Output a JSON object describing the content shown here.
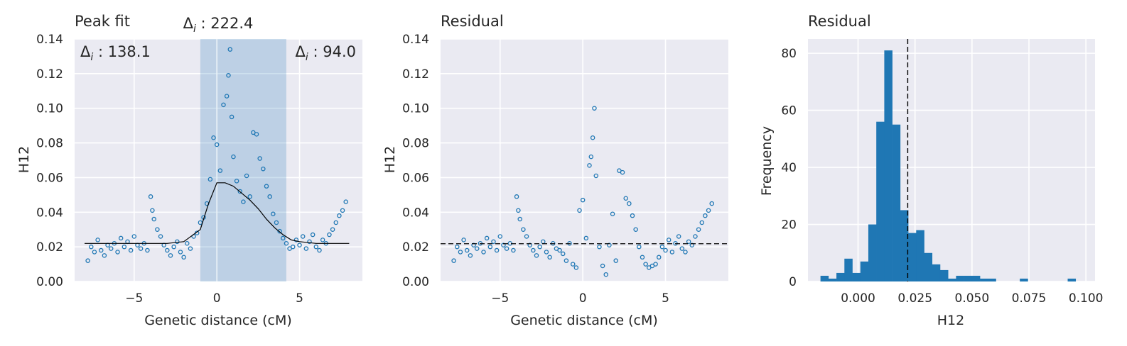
{
  "chart_data": [
    {
      "type": "scatter",
      "title": "Peak fit",
      "xlabel": "Genetic distance (cM)",
      "ylabel": "H12",
      "xlim": [
        -8.6,
        8.8
      ],
      "ylim": [
        0,
        0.14
      ],
      "xticks": [
        -5,
        0,
        5
      ],
      "xtick_labels": [
        "−5",
        "0",
        "5"
      ],
      "yticks": [
        0,
        0.02,
        0.04,
        0.06,
        0.08,
        0.1,
        0.12,
        0.14
      ],
      "ytick_labels": [
        "0.00",
        "0.02",
        "0.04",
        "0.06",
        "0.08",
        "0.10",
        "0.12",
        "0.14"
      ],
      "grid": true,
      "shaded_region": [
        -1.0,
        4.2
      ],
      "center_line_x": 0.0,
      "annotations": [
        {
          "text": "Δ",
          "sub": "i",
          "rest": " : 222.4",
          "pos": "top-center"
        },
        {
          "text": "Δ",
          "sub": "i",
          "rest": " : 138.1",
          "pos": "top-left"
        },
        {
          "text": "Δ",
          "sub": "i",
          "rest": " : 94.0",
          "pos": "top-right"
        }
      ],
      "fit_curve": {
        "baseline": 0.022,
        "x": [
          -8,
          -7,
          -6,
          -5,
          -4,
          -3,
          -2,
          -1,
          -0.5,
          0,
          0.5,
          1,
          1.5,
          2,
          2.5,
          3,
          3.5,
          4,
          4.5,
          5,
          6,
          7,
          8
        ],
        "y": [
          0.022,
          0.022,
          0.022,
          0.022,
          0.022,
          0.022,
          0.023,
          0.03,
          0.045,
          0.057,
          0.057,
          0.055,
          0.051,
          0.047,
          0.042,
          0.036,
          0.031,
          0.027,
          0.024,
          0.023,
          0.022,
          0.022,
          0.022
        ]
      },
      "points": {
        "x": [
          -7.8,
          -7.6,
          -7.4,
          -7.2,
          -7.0,
          -6.8,
          -6.6,
          -6.4,
          -6.2,
          -6.0,
          -5.8,
          -5.6,
          -5.4,
          -5.2,
          -5.0,
          -4.8,
          -4.6,
          -4.4,
          -4.2,
          -4.0,
          -3.9,
          -3.8,
          -3.6,
          -3.4,
          -3.2,
          -3.0,
          -2.8,
          -2.6,
          -2.4,
          -2.2,
          -2.0,
          -1.8,
          -1.6,
          -1.4,
          -1.2,
          -1.0,
          -0.8,
          -0.6,
          -0.4,
          -0.2,
          0.0,
          0.2,
          0.4,
          0.6,
          0.7,
          0.8,
          0.9,
          1.0,
          1.2,
          1.4,
          1.6,
          1.8,
          2.0,
          2.2,
          2.4,
          2.6,
          2.8,
          3.0,
          3.2,
          3.4,
          3.6,
          3.8,
          4.0,
          4.2,
          4.4,
          4.6,
          4.8,
          5.0,
          5.2,
          5.4,
          5.6,
          5.8,
          6.0,
          6.2,
          6.4,
          6.6,
          6.8,
          7.0,
          7.2,
          7.4,
          7.6,
          7.8
        ],
        "y": [
          0.012,
          0.02,
          0.017,
          0.024,
          0.018,
          0.015,
          0.021,
          0.019,
          0.022,
          0.017,
          0.025,
          0.02,
          0.023,
          0.018,
          0.026,
          0.021,
          0.019,
          0.022,
          0.018,
          0.049,
          0.041,
          0.036,
          0.03,
          0.026,
          0.021,
          0.018,
          0.015,
          0.02,
          0.023,
          0.017,
          0.014,
          0.022,
          0.019,
          0.026,
          0.028,
          0.034,
          0.037,
          0.045,
          0.059,
          0.083,
          0.079,
          0.064,
          0.102,
          0.107,
          0.119,
          0.134,
          0.095,
          0.072,
          0.058,
          0.052,
          0.046,
          0.061,
          0.049,
          0.086,
          0.085,
          0.071,
          0.065,
          0.055,
          0.049,
          0.039,
          0.034,
          0.029,
          0.025,
          0.022,
          0.019,
          0.02,
          0.024,
          0.021,
          0.026,
          0.019,
          0.023,
          0.027,
          0.02,
          0.018,
          0.024,
          0.022,
          0.027,
          0.03,
          0.034,
          0.038,
          0.041,
          0.046
        ]
      }
    },
    {
      "type": "scatter",
      "title": "Residual",
      "xlabel": "Genetic distance (cM)",
      "ylabel": "H12",
      "xlim": [
        -8.6,
        8.8
      ],
      "ylim": [
        0,
        0.14
      ],
      "xticks": [
        -5,
        0,
        5
      ],
      "xtick_labels": [
        "−5",
        "0",
        "5"
      ],
      "yticks": [
        0,
        0.02,
        0.04,
        0.06,
        0.08,
        0.1,
        0.12,
        0.14
      ],
      "ytick_labels": [
        "0.00",
        "0.02",
        "0.04",
        "0.06",
        "0.08",
        "0.10",
        "0.12",
        "0.14"
      ],
      "grid": true,
      "hline_y": 0.0218,
      "points": {
        "x": [
          -7.8,
          -7.6,
          -7.4,
          -7.2,
          -7.0,
          -6.8,
          -6.6,
          -6.4,
          -6.2,
          -6.0,
          -5.8,
          -5.6,
          -5.4,
          -5.2,
          -5.0,
          -4.8,
          -4.6,
          -4.4,
          -4.2,
          -4.0,
          -3.9,
          -3.8,
          -3.6,
          -3.4,
          -3.2,
          -3.0,
          -2.8,
          -2.6,
          -2.4,
          -2.2,
          -2.0,
          -1.8,
          -1.6,
          -1.4,
          -1.2,
          -1.0,
          -0.8,
          -0.6,
          -0.4,
          -0.2,
          0.0,
          0.2,
          0.4,
          0.5,
          0.6,
          0.7,
          0.8,
          1.0,
          1.2,
          1.4,
          1.6,
          1.8,
          2.0,
          2.2,
          2.4,
          2.6,
          2.8,
          3.0,
          3.2,
          3.4,
          3.6,
          3.8,
          4.0,
          4.2,
          4.4,
          4.6,
          4.8,
          5.0,
          5.2,
          5.4,
          5.6,
          5.8,
          6.0,
          6.2,
          6.4,
          6.6,
          6.8,
          7.0,
          7.2,
          7.4,
          7.6,
          7.8
        ],
        "y": [
          0.012,
          0.02,
          0.017,
          0.024,
          0.018,
          0.015,
          0.021,
          0.019,
          0.022,
          0.017,
          0.025,
          0.02,
          0.023,
          0.018,
          0.026,
          0.021,
          0.019,
          0.022,
          0.018,
          0.049,
          0.041,
          0.036,
          0.03,
          0.026,
          0.021,
          0.018,
          0.015,
          0.02,
          0.023,
          0.017,
          0.014,
          0.022,
          0.019,
          0.018,
          0.016,
          0.012,
          0.022,
          0.01,
          0.008,
          0.041,
          0.047,
          0.025,
          0.067,
          0.072,
          0.083,
          0.1,
          0.061,
          0.02,
          0.009,
          0.004,
          0.021,
          0.039,
          0.012,
          0.064,
          0.063,
          0.048,
          0.045,
          0.038,
          0.03,
          0.02,
          0.014,
          0.01,
          0.008,
          0.009,
          0.01,
          0.014,
          0.02,
          0.018,
          0.024,
          0.017,
          0.022,
          0.026,
          0.019,
          0.017,
          0.023,
          0.021,
          0.026,
          0.03,
          0.034,
          0.038,
          0.041,
          0.045
        ]
      }
    },
    {
      "type": "bar",
      "title": "Residual",
      "xlabel": "H12",
      "ylabel": "Frequency",
      "xlim": [
        -0.022,
        0.104
      ],
      "ylim": [
        0,
        85
      ],
      "xticks": [
        0,
        0.025,
        0.05,
        0.075,
        0.1
      ],
      "xtick_labels": [
        "0.000",
        "0.025",
        "0.050",
        "0.075",
        "0.100"
      ],
      "yticks": [
        0,
        20,
        40,
        60,
        80
      ],
      "ytick_labels": [
        "0",
        "20",
        "40",
        "60",
        "80"
      ],
      "grid": true,
      "vline_x": 0.0218,
      "bins": {
        "edges": [
          -0.0165,
          -0.013,
          -0.0095,
          -0.006,
          -0.0025,
          0.001,
          0.0045,
          0.008,
          0.0115,
          0.015,
          0.0185,
          0.022,
          0.0255,
          0.029,
          0.0325,
          0.036,
          0.0395,
          0.043,
          0.0465,
          0.05,
          0.0535,
          0.057,
          0.0605,
          0.064,
          0.0675,
          0.071,
          0.0745,
          0.078,
          0.0815,
          0.085,
          0.0885,
          0.092,
          0.0955,
          0.099,
          0.1025
        ],
        "counts": [
          2,
          1,
          3,
          8,
          3,
          7,
          20,
          56,
          81,
          55,
          25,
          17,
          18,
          10,
          6,
          4,
          1,
          2,
          2,
          2,
          1,
          1,
          0,
          0,
          0,
          1,
          0,
          0,
          0,
          0,
          0,
          1,
          0,
          0
        ]
      }
    }
  ]
}
